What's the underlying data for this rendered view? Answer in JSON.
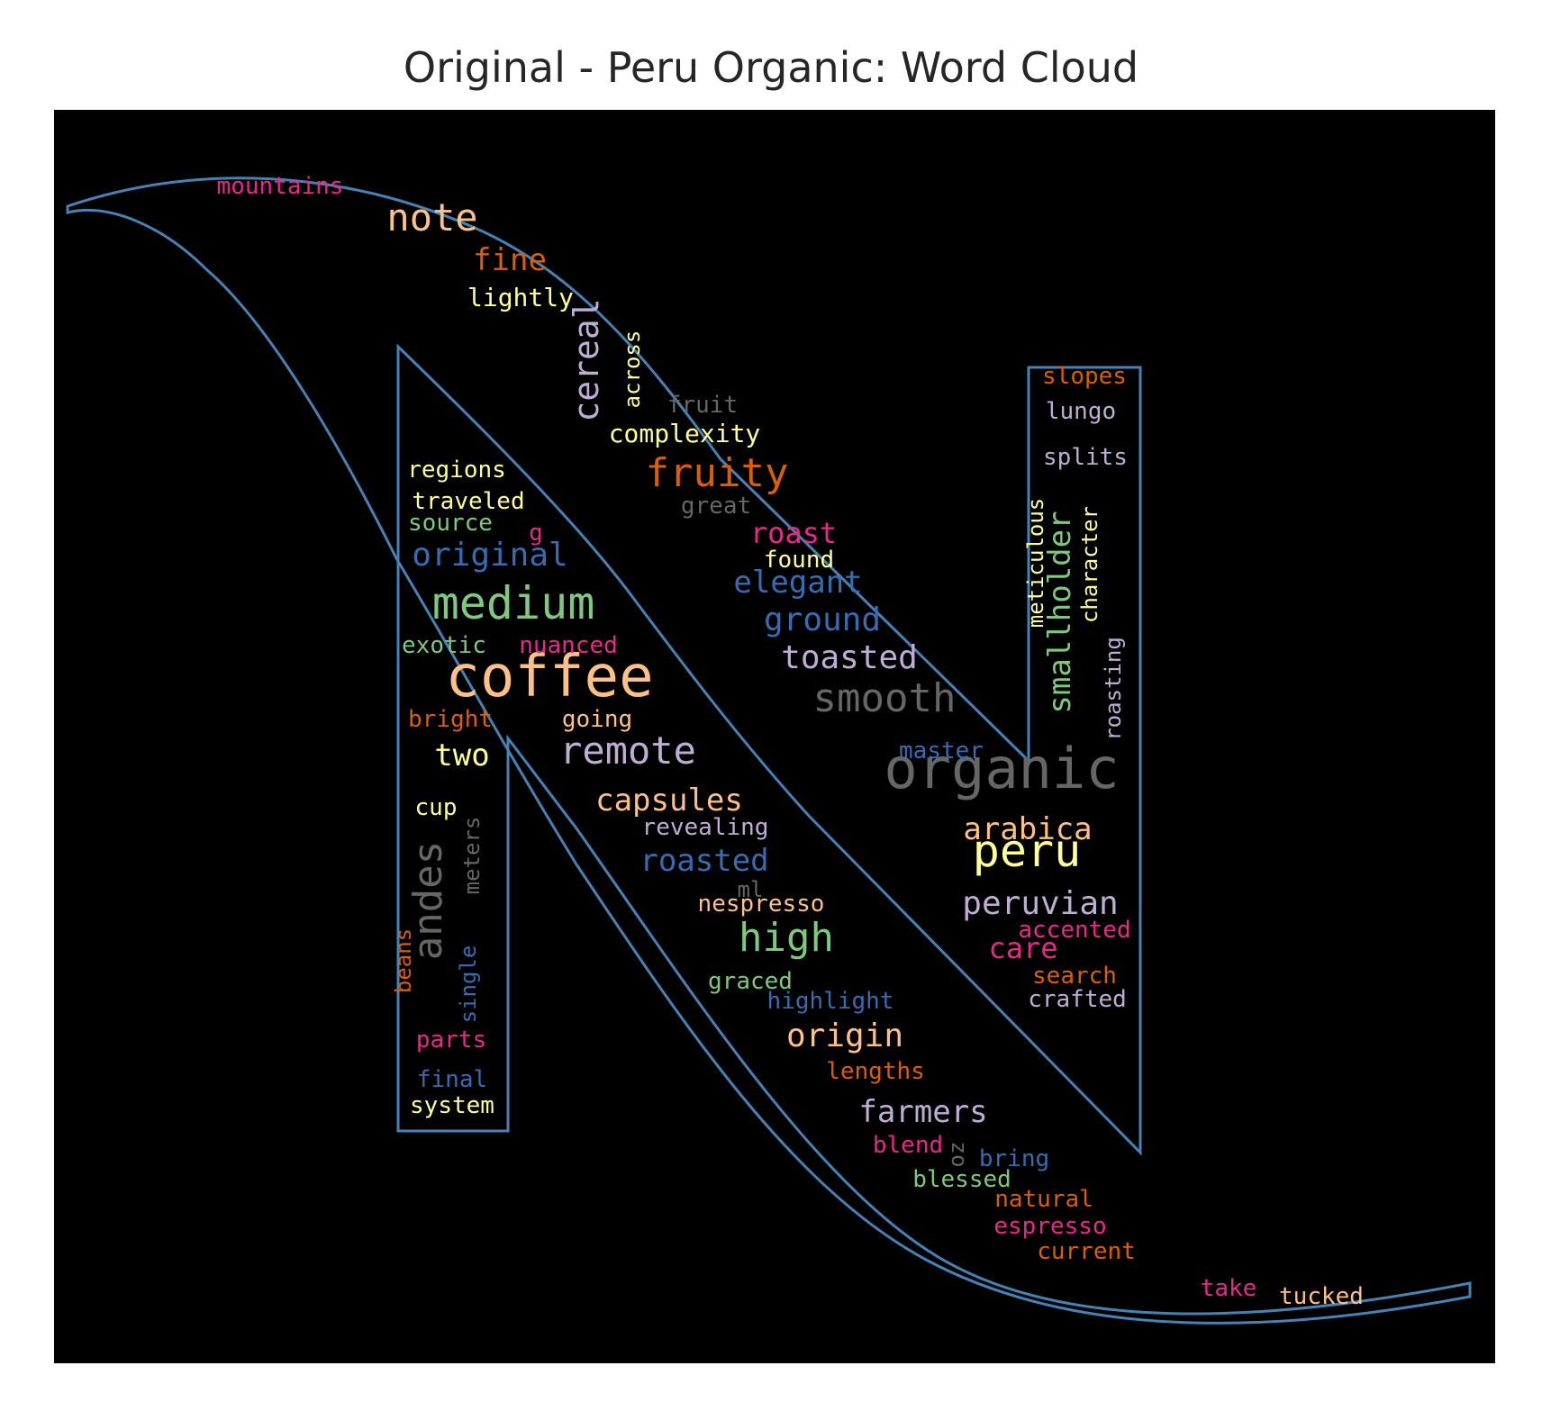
{
  "chart_data": {
    "type": "wordcloud",
    "title": "Original - Peru Organic: Word Cloud",
    "background": "#000000",
    "outline_color": "#4682b4",
    "palette": [
      "#e7298a",
      "#fdc086",
      "#d95f02",
      "#ffff99",
      "#beaed4",
      "#386cb0",
      "#7fc97f",
      "#666666"
    ],
    "words": [
      {
        "text": "organic",
        "weight": 1.0,
        "color": "#666666",
        "rotate": 0
      },
      {
        "text": "coffee",
        "weight": 0.95,
        "color": "#fdc086",
        "rotate": 0
      },
      {
        "text": "medium",
        "weight": 0.74,
        "color": "#7fc97f",
        "rotate": 0
      },
      {
        "text": "peru",
        "weight": 0.72,
        "color": "#ffff99",
        "rotate": 0
      },
      {
        "text": "smooth",
        "weight": 0.66,
        "color": "#666666",
        "rotate": 0
      },
      {
        "text": "andes",
        "weight": 0.66,
        "color": "#666666",
        "rotate": 90
      },
      {
        "text": "high",
        "weight": 0.64,
        "color": "#7fc97f",
        "rotate": 0
      },
      {
        "text": "remote",
        "weight": 0.62,
        "color": "#beaed4",
        "rotate": 0
      },
      {
        "text": "fruity",
        "weight": 0.62,
        "color": "#d95f02",
        "rotate": 0
      },
      {
        "text": "note",
        "weight": 0.6,
        "color": "#fdc086",
        "rotate": 0
      },
      {
        "text": "cereal",
        "weight": 0.56,
        "color": "#beaed4",
        "rotate": 90
      },
      {
        "text": "smallholder",
        "weight": 0.54,
        "color": "#7fc97f",
        "rotate": 90
      },
      {
        "text": "original",
        "weight": 0.54,
        "color": "#386cb0",
        "rotate": 0
      },
      {
        "text": "peruvian",
        "weight": 0.54,
        "color": "#beaed4",
        "rotate": 0
      },
      {
        "text": "origin",
        "weight": 0.52,
        "color": "#fdc086",
        "rotate": 0
      },
      {
        "text": "toasted",
        "weight": 0.52,
        "color": "#beaed4",
        "rotate": 0
      },
      {
        "text": "ground",
        "weight": 0.52,
        "color": "#386cb0",
        "rotate": 0
      },
      {
        "text": "elegant",
        "weight": 0.5,
        "color": "#386cb0",
        "rotate": 0
      },
      {
        "text": "roasted",
        "weight": 0.5,
        "color": "#386cb0",
        "rotate": 0
      },
      {
        "text": "capsules",
        "weight": 0.5,
        "color": "#fdc086",
        "rotate": 0
      },
      {
        "text": "arabica",
        "weight": 0.5,
        "color": "#fdc086",
        "rotate": 0
      },
      {
        "text": "farmers",
        "weight": 0.5,
        "color": "#beaed4",
        "rotate": 0
      },
      {
        "text": "two",
        "weight": 0.5,
        "color": "#ffff99",
        "rotate": 0
      },
      {
        "text": "fine",
        "weight": 0.5,
        "color": "#d95f02",
        "rotate": 0
      },
      {
        "text": "roast",
        "weight": 0.46,
        "color": "#e7298a",
        "rotate": 0
      },
      {
        "text": "care",
        "weight": 0.46,
        "color": "#e7298a",
        "rotate": 0
      },
      {
        "text": "meticulous",
        "weight": 0.38,
        "color": "#ffff99",
        "rotate": 90
      },
      {
        "text": "character",
        "weight": 0.38,
        "color": "#ffff99",
        "rotate": 90
      },
      {
        "text": "roasting",
        "weight": 0.38,
        "color": "#beaed4",
        "rotate": 90
      },
      {
        "text": "meters",
        "weight": 0.36,
        "color": "#666666",
        "rotate": 90
      },
      {
        "text": "single",
        "weight": 0.36,
        "color": "#386cb0",
        "rotate": 90
      },
      {
        "text": "beans",
        "weight": 0.36,
        "color": "#d95f02",
        "rotate": 90
      },
      {
        "text": "across",
        "weight": 0.36,
        "color": "#ffff99",
        "rotate": 90
      },
      {
        "text": "mountains",
        "weight": 0.38,
        "color": "#e7298a",
        "rotate": 0
      },
      {
        "text": "lightly",
        "weight": 0.4,
        "color": "#ffff99",
        "rotate": 0
      },
      {
        "text": "fruit",
        "weight": 0.4,
        "color": "#666666",
        "rotate": 0
      },
      {
        "text": "complexity",
        "weight": 0.4,
        "color": "#ffff99",
        "rotate": 0
      },
      {
        "text": "great",
        "weight": 0.36,
        "color": "#666666",
        "rotate": 0
      },
      {
        "text": "regions",
        "weight": 0.38,
        "color": "#ffff99",
        "rotate": 0
      },
      {
        "text": "traveled",
        "weight": 0.38,
        "color": "#ffff99",
        "rotate": 0
      },
      {
        "text": "source",
        "weight": 0.36,
        "color": "#7fc97f",
        "rotate": 0
      },
      {
        "text": "g",
        "weight": 0.36,
        "color": "#e7298a",
        "rotate": 0
      },
      {
        "text": "found",
        "weight": 0.38,
        "color": "#ffff99",
        "rotate": 0
      },
      {
        "text": "exotic",
        "weight": 0.38,
        "color": "#7fc97f",
        "rotate": 0
      },
      {
        "text": "nuanced",
        "weight": 0.38,
        "color": "#e7298a",
        "rotate": 0
      },
      {
        "text": "bright",
        "weight": 0.38,
        "color": "#d95f02",
        "rotate": 0
      },
      {
        "text": "going",
        "weight": 0.38,
        "color": "#fdc086",
        "rotate": 0
      },
      {
        "text": "cup",
        "weight": 0.38,
        "color": "#ffff99",
        "rotate": 0
      },
      {
        "text": "revealing",
        "weight": 0.38,
        "color": "#beaed4",
        "rotate": 0
      },
      {
        "text": "ml",
        "weight": 0.34,
        "color": "#666666",
        "rotate": 0
      },
      {
        "text": "nespresso",
        "weight": 0.38,
        "color": "#fdc086",
        "rotate": 0
      },
      {
        "text": "graced",
        "weight": 0.38,
        "color": "#7fc97f",
        "rotate": 0
      },
      {
        "text": "highlight",
        "weight": 0.38,
        "color": "#386cb0",
        "rotate": 0
      },
      {
        "text": "lengths",
        "weight": 0.38,
        "color": "#d95f02",
        "rotate": 0
      },
      {
        "text": "parts",
        "weight": 0.38,
        "color": "#e7298a",
        "rotate": 0
      },
      {
        "text": "final",
        "weight": 0.38,
        "color": "#386cb0",
        "rotate": 0
      },
      {
        "text": "system",
        "weight": 0.38,
        "color": "#ffff99",
        "rotate": 0
      },
      {
        "text": "blend",
        "weight": 0.38,
        "color": "#e7298a",
        "rotate": 0
      },
      {
        "text": "oz",
        "weight": 0.34,
        "color": "#666666",
        "rotate": 90
      },
      {
        "text": "bring",
        "weight": 0.38,
        "color": "#386cb0",
        "rotate": 0
      },
      {
        "text": "blessed",
        "weight": 0.38,
        "color": "#7fc97f",
        "rotate": 0
      },
      {
        "text": "natural",
        "weight": 0.38,
        "color": "#d95f02",
        "rotate": 0
      },
      {
        "text": "espresso",
        "weight": 0.38,
        "color": "#e7298a",
        "rotate": 0
      },
      {
        "text": "current",
        "weight": 0.38,
        "color": "#d95f02",
        "rotate": 0
      },
      {
        "text": "take",
        "weight": 0.38,
        "color": "#e7298a",
        "rotate": 0
      },
      {
        "text": "tucked",
        "weight": 0.38,
        "color": "#fdc086",
        "rotate": 0
      },
      {
        "text": "slopes",
        "weight": 0.38,
        "color": "#d95f02",
        "rotate": 0
      },
      {
        "text": "lungo",
        "weight": 0.38,
        "color": "#beaed4",
        "rotate": 0
      },
      {
        "text": "splits",
        "weight": 0.38,
        "color": "#beaed4",
        "rotate": 0
      },
      {
        "text": "master",
        "weight": 0.36,
        "color": "#386cb0",
        "rotate": 0
      },
      {
        "text": "accented",
        "weight": 0.38,
        "color": "#e7298a",
        "rotate": 0
      },
      {
        "text": "search",
        "weight": 0.38,
        "color": "#d95f02",
        "rotate": 0
      },
      {
        "text": "crafted",
        "weight": 0.38,
        "color": "#beaed4",
        "rotate": 0
      }
    ]
  }
}
